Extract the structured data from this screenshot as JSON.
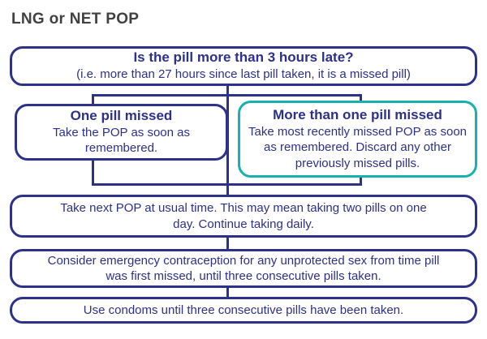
{
  "title": "LNG or NET POP",
  "colors": {
    "navy": "#2c3189",
    "teal": "#16b2ab",
    "title_text": "#414042"
  },
  "flowchart": {
    "question": {
      "heading": "Is the pill more than 3 hours late?",
      "subtext": "(i.e. more than 27 hours since last pill taken, it is a missed pill)"
    },
    "one_missed": {
      "heading": "One pill missed",
      "body": "Take the POP as soon as remembered."
    },
    "more_missed": {
      "heading": "More than one pill missed",
      "body": "Take most recently missed POP as soon as remembered. Discard any other previously missed pills."
    },
    "next_step": "Take next POP at usual time. This may mean taking two pills on one day. Continue taking daily.",
    "emergency": "Consider emergency contraception for any unprotected sex from time pill was first missed, until three consecutive pills taken.",
    "condoms": "Use condoms until three consecutive pills have been taken."
  }
}
